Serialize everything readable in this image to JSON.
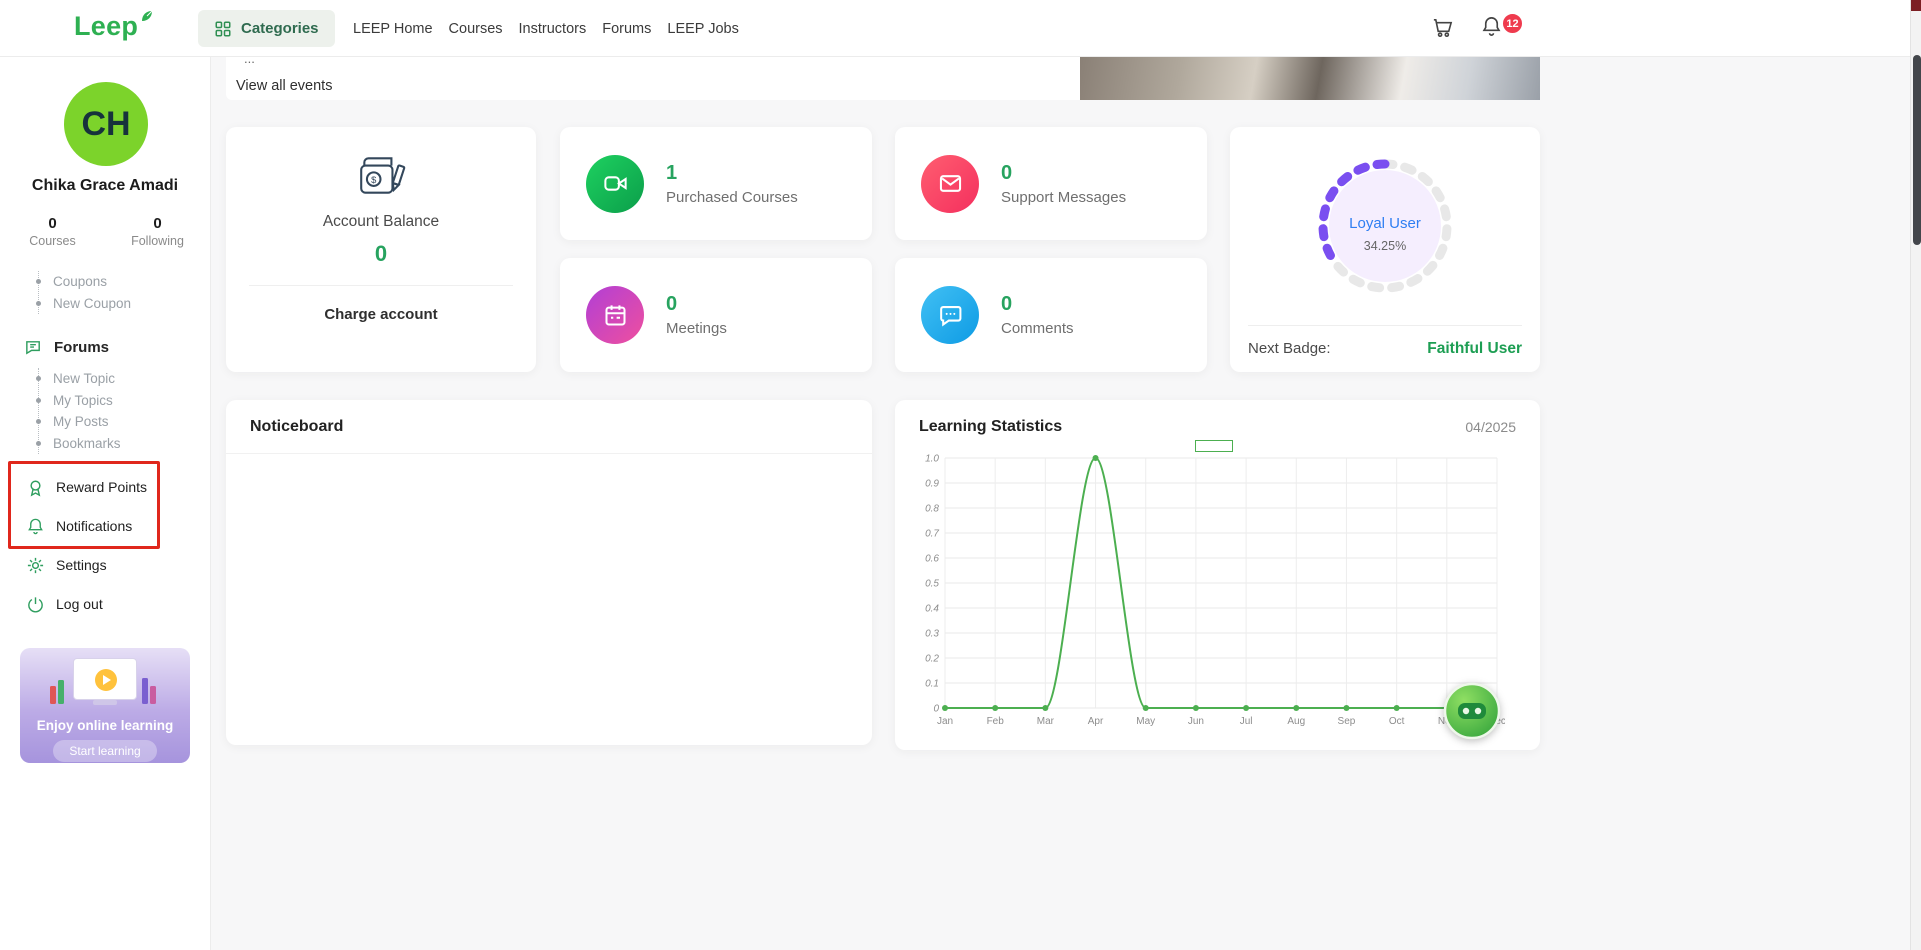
{
  "navbar": {
    "logo_text": "Leep",
    "categories": "Categories",
    "links": [
      {
        "label": "LEEP Home"
      },
      {
        "label": "Courses"
      },
      {
        "label": "Instructors"
      },
      {
        "label": "Forums"
      },
      {
        "label": "LEEP Jobs"
      }
    ],
    "notification_badge": "12"
  },
  "sidebar": {
    "avatar_initials": "CH",
    "user_name": "Chika Grace Amadi",
    "stats": [
      {
        "value": "0",
        "label": "Courses"
      },
      {
        "value": "0",
        "label": "Following"
      }
    ],
    "coupon_links": [
      {
        "label": "Coupons"
      },
      {
        "label": "New Coupon"
      }
    ],
    "forums_label": "Forums",
    "forums_sub": [
      {
        "label": "New Topic"
      },
      {
        "label": "My Topics"
      },
      {
        "label": "My Posts"
      },
      {
        "label": "Bookmarks"
      }
    ],
    "reward_points": "Reward Points",
    "notifications": "Notifications",
    "settings": "Settings",
    "logout": "Log out",
    "promo_title": "Enjoy online learning",
    "promo_button": "Start learning"
  },
  "events_bar": {
    "ellipsis": "...",
    "view_all": "View all events"
  },
  "account_card": {
    "title": "Account Balance",
    "balance": "0",
    "action": "Charge account"
  },
  "stat_cards": [
    {
      "value": "1",
      "label": "Purchased Courses",
      "icon": "video-camera-icon",
      "color_from": "#1ed160",
      "color_to": "#0b9e4a"
    },
    {
      "value": "0",
      "label": "Meetings",
      "icon": "calendar-icon",
      "color_from": "#b13fd6",
      "color_to": "#ef4f9e"
    },
    {
      "value": "0",
      "label": "Support Messages",
      "icon": "envelope-icon",
      "color_from": "#ff5e70",
      "color_to": "#f42f5e"
    },
    {
      "value": "0",
      "label": "Comments",
      "icon": "chat-bubble-icon",
      "color_from": "#41c0f4",
      "color_to": "#0e9be4"
    }
  ],
  "badge_card": {
    "badge_name": "Loyal User",
    "percent": "34.25%",
    "percent_value": 34.25,
    "next_label": "Next Badge:",
    "next_badge": "Faithful User",
    "ring_color": "#7a4ff0",
    "ring_track": "#e8e8e8"
  },
  "noticeboard": {
    "title": "Noticeboard"
  },
  "learning": {
    "title": "Learning Statistics",
    "period": "04/2025"
  },
  "chart_data": {
    "type": "line",
    "title": "Learning Statistics",
    "categories": [
      "Jan",
      "Feb",
      "Mar",
      "Apr",
      "May",
      "Jun",
      "Jul",
      "Aug",
      "Sep",
      "Oct",
      "Nov",
      "Dec"
    ],
    "values": [
      0,
      0,
      0,
      1,
      0,
      0,
      0,
      0,
      0,
      0,
      0,
      0
    ],
    "ylim": [
      0,
      1.0
    ],
    "ytick_step": 0.1,
    "line_color": "#4caf50",
    "grid": true,
    "legend": "empty-green-box-top-center"
  },
  "colors": {
    "accent_green": "#2eb052",
    "value_green": "#27a35f",
    "annotation_red": "#e0271c",
    "loyal_user_blue": "#2e7ef2",
    "faithful_user_green": "#1d9e53",
    "notification_badge_red": "#ef3b4e"
  }
}
